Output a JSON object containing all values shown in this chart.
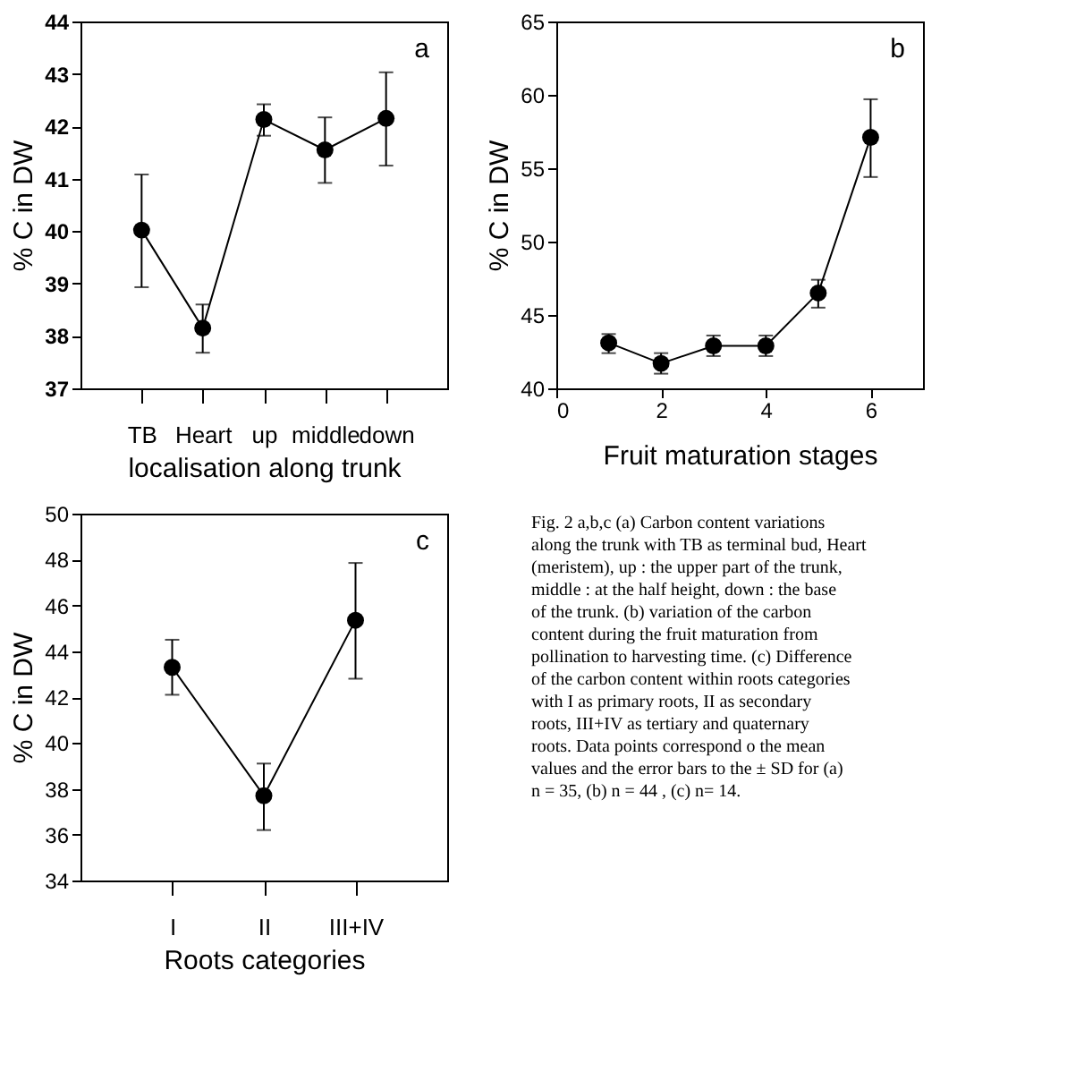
{
  "chart_data": [
    {
      "type": "line",
      "categories": [
        "TB",
        "Heart",
        "up",
        "middle",
        "down"
      ],
      "xlabel": "localisation along trunk",
      "ylabel": "% C in DW",
      "ylim": [
        37,
        44
      ],
      "yticks": [
        37,
        38,
        39,
        40,
        41,
        42,
        43,
        44
      ],
      "grid": false,
      "marker": "circle",
      "annotations": [
        "a"
      ],
      "series": [
        {
          "color": "#000000",
          "values": [
            40.02,
            38.15,
            42.13,
            41.55,
            42.15
          ],
          "errors": [
            [
              38.93,
              41.08
            ],
            [
              37.68,
              38.6
            ],
            [
              41.82,
              42.42
            ],
            [
              40.92,
              42.17
            ],
            [
              41.25,
              43.03
            ]
          ]
        }
      ]
    },
    {
      "type": "line",
      "x": [
        1,
        2,
        3,
        4,
        5,
        6
      ],
      "xlabel": "Fruit maturation stages",
      "ylabel": "% C in DW",
      "xlim": [
        0,
        7
      ],
      "xticks": [
        0,
        2,
        4,
        6
      ],
      "ylim": [
        40,
        65
      ],
      "yticks": [
        40,
        45,
        50,
        55,
        60,
        65
      ],
      "grid": false,
      "marker": "circle",
      "annotations": [
        "b"
      ],
      "series": [
        {
          "color": "#000000",
          "values": [
            43.1,
            41.7,
            42.9,
            42.9,
            46.5,
            57.1
          ],
          "errors": [
            [
              42.4,
              43.7
            ],
            [
              41.0,
              42.4
            ],
            [
              42.2,
              43.6
            ],
            [
              42.2,
              43.6
            ],
            [
              45.5,
              47.4
            ],
            [
              54.4,
              59.7
            ]
          ]
        }
      ]
    },
    {
      "type": "line",
      "categories": [
        "I",
        "II",
        "III+IV"
      ],
      "xlabel": "Roots categories",
      "ylabel": "% C in DW",
      "ylim": [
        34,
        50
      ],
      "yticks": [
        34,
        36,
        38,
        40,
        42,
        44,
        46,
        48,
        50
      ],
      "grid": false,
      "marker": "circle",
      "annotations": [
        "c"
      ],
      "series": [
        {
          "color": "#000000",
          "values": [
            43.3,
            37.7,
            45.35
          ],
          "errors": [
            [
              42.1,
              44.5
            ],
            [
              36.2,
              39.1
            ],
            [
              42.8,
              47.85
            ]
          ]
        }
      ]
    },
    {
      "type": "other",
      "annotations": [
        "Fig. 2 a,b,c (a) Carbon content variations along the trunk with TB as terminal bud, Heart (meristem), up : the upper part of the trunk, middle : at the half height, down : the base of the trunk. (b) variation of the carbon content during the fruit maturation from pollination to harvesting time. (c) Difference of the carbon content within roots categories with I as primary roots, II as secondary roots, III+IV as tertiary and quaternary roots. Data points correspond o the mean values and the error bars to the  ± SD for (a) n = 35, (b) n =  44 , (c)  n= 14."
      ]
    }
  ]
}
